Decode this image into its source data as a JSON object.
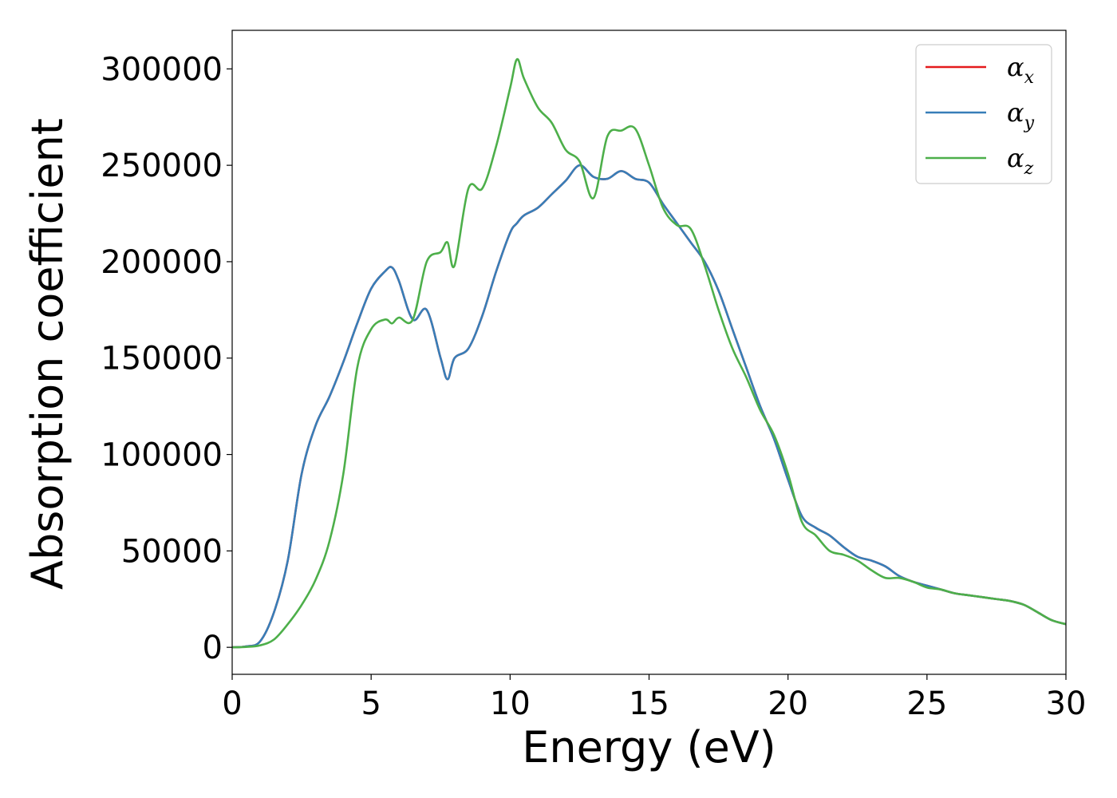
{
  "chart_data": {
    "type": "line",
    "xlabel": "Energy (eV)",
    "ylabel": "Absorption coefficient",
    "xlim": [
      0,
      30
    ],
    "ylim": [
      -14000,
      320000
    ],
    "xticks": [
      0,
      5,
      10,
      15,
      20,
      25,
      30
    ],
    "xtick_labels": [
      "0",
      "5",
      "10",
      "15",
      "20",
      "25",
      "30"
    ],
    "yticks": [
      0,
      50000,
      100000,
      150000,
      200000,
      250000,
      300000
    ],
    "ytick_labels": [
      "0",
      "50000",
      "100000",
      "150000",
      "200000",
      "250000",
      "300000"
    ],
    "grid": false,
    "legend_position": "top-right",
    "x": [
      0,
      0.5,
      1.0,
      1.5,
      2.0,
      2.5,
      3.0,
      3.5,
      4.0,
      4.5,
      5.0,
      5.5,
      5.75,
      6.0,
      6.5,
      7.0,
      7.5,
      7.75,
      8.0,
      8.5,
      9.0,
      9.5,
      10.0,
      10.25,
      10.5,
      11.0,
      11.5,
      12.0,
      12.5,
      13.0,
      13.5,
      14.0,
      14.5,
      15.0,
      15.5,
      16.0,
      16.5,
      17.0,
      17.5,
      18.0,
      18.5,
      19.0,
      19.5,
      20.0,
      20.5,
      21.0,
      21.5,
      22.0,
      22.5,
      23.0,
      23.5,
      24.0,
      24.5,
      25.0,
      25.5,
      26.0,
      26.5,
      27.0,
      27.5,
      28.0,
      28.5,
      29.0,
      29.5,
      30.0
    ],
    "series": [
      {
        "name": "α",
        "subscript": "x",
        "color": "#e41a1c",
        "values": [
          0,
          500,
          3000,
          18000,
          45000,
          90000,
          115000,
          130000,
          148000,
          168000,
          186000,
          195000,
          197000,
          190000,
          170000,
          175000,
          150000,
          139000,
          150000,
          155000,
          172000,
          195000,
          215000,
          220000,
          224000,
          228000,
          235000,
          242000,
          250000,
          244000,
          243000,
          247000,
          243000,
          241000,
          230000,
          220000,
          210000,
          200000,
          185000,
          165000,
          145000,
          125000,
          108000,
          87000,
          68000,
          62000,
          58000,
          52000,
          47000,
          45000,
          42000,
          37000,
          34000,
          32000,
          30000,
          28000,
          27000,
          26000,
          25000,
          24000,
          22000,
          18000,
          14000,
          12000
        ]
      },
      {
        "name": "α",
        "subscript": "y",
        "color": "#377eb8",
        "values": [
          0,
          500,
          3000,
          18000,
          45000,
          90000,
          115000,
          130000,
          148000,
          168000,
          186000,
          195000,
          197000,
          190000,
          170000,
          175000,
          150000,
          139000,
          150000,
          155000,
          172000,
          195000,
          215000,
          220000,
          224000,
          228000,
          235000,
          242000,
          250000,
          244000,
          243000,
          247000,
          243000,
          241000,
          230000,
          220000,
          210000,
          200000,
          185000,
          165000,
          145000,
          125000,
          108000,
          87000,
          68000,
          62000,
          58000,
          52000,
          47000,
          45000,
          42000,
          37000,
          34000,
          32000,
          30000,
          28000,
          27000,
          26000,
          25000,
          24000,
          22000,
          18000,
          14000,
          12000
        ]
      },
      {
        "name": "α",
        "subscript": "z",
        "color": "#4daf4a",
        "values": [
          0,
          200,
          1000,
          4000,
          12000,
          22000,
          35000,
          55000,
          90000,
          145000,
          165000,
          170000,
          168000,
          171000,
          170000,
          200000,
          205000,
          210000,
          198000,
          238000,
          238000,
          260000,
          290000,
          305000,
          295000,
          280000,
          272000,
          258000,
          252000,
          233000,
          265000,
          268000,
          269000,
          250000,
          228000,
          219000,
          217000,
          198000,
          175000,
          155000,
          140000,
          123000,
          110000,
          90000,
          65000,
          58000,
          50000,
          48000,
          45000,
          40000,
          36000,
          36000,
          34000,
          31000,
          30000,
          28000,
          27000,
          26000,
          25000,
          24000,
          22000,
          18000,
          14000,
          12000
        ]
      }
    ]
  }
}
